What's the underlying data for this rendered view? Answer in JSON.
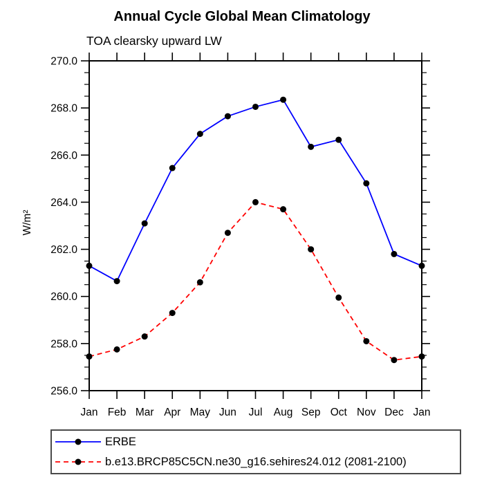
{
  "title": "Annual Cycle Global Mean Climatology",
  "subtitle": "TOA clearsky upward LW",
  "colors": {
    "erbe_line": "#0000ff",
    "model_line": "#ff0000",
    "marker": "#000000",
    "axis": "#000000",
    "background": "#ffffff",
    "legend_border": "#4a4a4a"
  },
  "chart_data": {
    "type": "line",
    "categories": [
      "Jan",
      "Feb",
      "Mar",
      "Apr",
      "May",
      "Jun",
      "Jul",
      "Aug",
      "Sep",
      "Oct",
      "Nov",
      "Dec",
      "Jan"
    ],
    "xlabel": "",
    "ylabel": "W/m²",
    "ylim": [
      256.0,
      270.0
    ],
    "ytick_step": 2.0,
    "yminor_step": 0.5,
    "ytick_format_decimals": 1,
    "grid": "off",
    "legend_position": "bottom-left-box",
    "series": [
      {
        "name": "ERBE",
        "color": "#0000ff",
        "style": "solid",
        "marker": "circle",
        "marker_color": "#000000",
        "values": [
          261.3,
          260.65,
          263.1,
          265.45,
          266.9,
          267.65,
          268.05,
          268.35,
          266.35,
          266.65,
          264.8,
          261.8,
          261.3
        ]
      },
      {
        "name": "b.e13.BRCP85C5CN.ne30_g16.sehires24.012 (2081-2100)",
        "color": "#ff0000",
        "style": "dashed",
        "marker": "circle",
        "marker_color": "#000000",
        "values": [
          257.45,
          257.75,
          258.3,
          259.3,
          260.6,
          262.7,
          264.0,
          263.7,
          262.0,
          259.95,
          258.1,
          257.3,
          257.45
        ]
      }
    ]
  }
}
